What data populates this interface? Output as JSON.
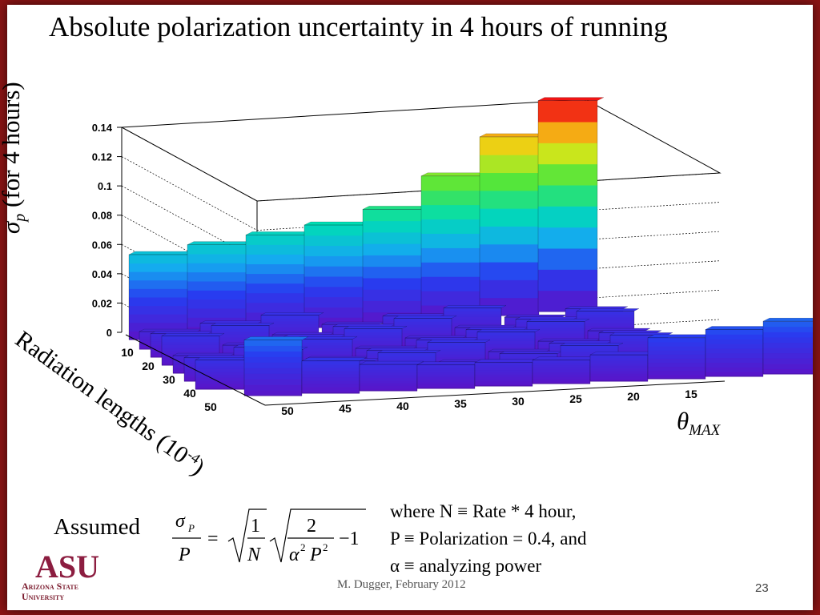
{
  "slide": {
    "title": "Absolute polarization uncertainty in 4 hours of running",
    "ylabel_symbol": "σ",
    "ylabel_sub": "p",
    "ylabel_rest": " (for 4 hours)",
    "xlabel_rad": "Radiation lengths (10",
    "xlabel_rad_sup": "-4",
    "xlabel_rad_end": ")",
    "xlabel_theta": "θ",
    "xlabel_theta_sub": "MAX",
    "assumed": "Assumed",
    "notes": [
      "where N ≡ Rate * 4 hour,",
      "P ≡ Polarization = 0.4, and",
      "α ≡ analyzing power"
    ],
    "footer": "M. Dugger, February 2012",
    "page_number": "23",
    "logo_text_1": "Arizona State",
    "logo_text_2": "University",
    "logo_mark": "ASU"
  },
  "colors": {
    "background": "#8a1414",
    "logo": "#8c1d40"
  },
  "chart_data": {
    "type": "lego3d",
    "title": "Absolute polarization uncertainty in 4 hours of running",
    "z_label": "σp (for 4 hours)",
    "x_label": "θMAX",
    "y_label": "Radiation lengths (10-4)",
    "x_ticks": [
      "50",
      "45",
      "40",
      "35",
      "30",
      "25",
      "20",
      "15"
    ],
    "y_ticks": [
      "10",
      "20",
      "30",
      "40",
      "50"
    ],
    "z_ticks": [
      "0",
      "0.02",
      "0.04",
      "0.06",
      "0.08",
      "0.1",
      "0.12",
      "0.14"
    ],
    "zlim": [
      0,
      0.14
    ],
    "grid": true,
    "row_back_values": [
      0.058,
      0.062,
      0.066,
      0.07,
      0.078,
      0.098,
      0.122,
      0.144
    ],
    "front_row_values": [
      0.038,
      0.022,
      0.018,
      0.016,
      0.016,
      0.016,
      0.018,
      0.028,
      0.032,
      0.036
    ]
  }
}
